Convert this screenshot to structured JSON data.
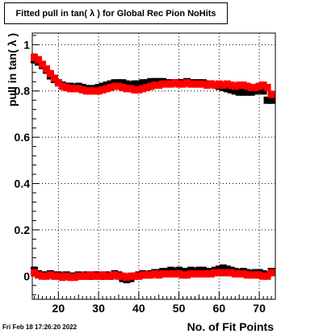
{
  "timestamp": "Fri Feb 18 17:26:20 2022",
  "colors": {
    "series_black": "#000000",
    "series_red": "#ff0000",
    "grid": "#000000"
  },
  "chart_data": {
    "type": "scatter",
    "title": "Fitted pull in tan( λ ) for Global Rec Pion NoHits",
    "xlabel": "No. of Fit Points",
    "ylabel": "pull in tan( λ )",
    "xlim": [
      13.5,
      74
    ],
    "ylim": [
      -0.1,
      1.05
    ],
    "xticks": [
      20,
      30,
      40,
      50,
      60,
      70
    ],
    "yticks": [
      0,
      0.2,
      0.4,
      0.6,
      0.8,
      1
    ],
    "ytick_labels": [
      "0",
      "0.2",
      "0.4",
      "0.6",
      "0.8",
      "1"
    ],
    "grid": true,
    "marker": "square",
    "x": [
      14,
      15,
      16,
      17,
      18,
      19,
      20,
      21,
      22,
      23,
      24,
      25,
      26,
      27,
      28,
      29,
      30,
      31,
      32,
      33,
      34,
      35,
      36,
      37,
      38,
      39,
      40,
      41,
      42,
      43,
      44,
      45,
      46,
      47,
      48,
      49,
      50,
      51,
      52,
      53,
      54,
      55,
      56,
      57,
      58,
      59,
      60,
      61,
      62,
      63,
      64,
      65,
      66,
      67,
      68,
      69,
      70,
      71,
      72,
      73
    ],
    "series": [
      {
        "color": "#000000",
        "groups": [
          {
            "values": [
              0.935,
              0.925,
              0.91,
              0.89,
              0.865,
              0.85,
              0.835,
              0.825,
              0.82,
              0.82,
              0.815,
              0.82,
              0.815,
              0.81,
              0.81,
              0.81,
              0.815,
              0.82,
              0.825,
              0.83,
              0.835,
              0.835,
              0.835,
              0.83,
              0.825,
              0.83,
              0.83,
              0.835,
              0.835,
              0.84,
              0.84,
              0.84,
              0.84,
              0.835,
              0.835,
              0.835,
              0.835,
              0.835,
              0.84,
              0.835,
              0.835,
              0.835,
              0.835,
              0.83,
              0.83,
              0.825,
              0.82,
              0.815,
              0.81,
              0.805,
              0.8,
              0.795,
              0.795,
              0.795,
              0.795,
              0.8,
              0.805,
              0.8,
              0.76,
              0.76
            ]
          },
          {
            "values": [
              0.025,
              0.01,
              0.005,
              0.005,
              0.01,
              0.005,
              0.005,
              0.0,
              0.005,
              0.0,
              0.0,
              0.005,
              0.0,
              0.005,
              0.0,
              0.005,
              0.005,
              0.0,
              0.005,
              0.0,
              0.01,
              0.005,
              -0.01,
              -0.015,
              -0.01,
              0.0,
              0.005,
              0.01,
              0.005,
              0.01,
              0.015,
              0.015,
              0.02,
              0.02,
              0.025,
              0.02,
              0.025,
              0.02,
              0.02,
              0.025,
              0.02,
              0.025,
              0.025,
              0.02,
              0.02,
              0.025,
              0.03,
              0.035,
              0.03,
              0.025,
              0.02,
              0.015,
              0.02,
              0.015,
              0.01,
              0.015,
              0.015,
              0.01,
              0.005,
              0.02
            ]
          }
        ]
      },
      {
        "color": "#ff0000",
        "groups": [
          {
            "values": [
              0.945,
              0.935,
              0.915,
              0.895,
              0.875,
              0.855,
              0.835,
              0.82,
              0.815,
              0.81,
              0.81,
              0.81,
              0.805,
              0.8,
              0.8,
              0.8,
              0.8,
              0.805,
              0.81,
              0.815,
              0.82,
              0.82,
              0.815,
              0.81,
              0.81,
              0.805,
              0.805,
              0.81,
              0.815,
              0.82,
              0.825,
              0.825,
              0.83,
              0.83,
              0.83,
              0.835,
              0.83,
              0.83,
              0.835,
              0.83,
              0.83,
              0.83,
              0.83,
              0.825,
              0.83,
              0.825,
              0.83,
              0.825,
              0.83,
              0.825,
              0.82,
              0.825,
              0.825,
              0.82,
              0.815,
              0.815,
              0.82,
              0.825,
              0.815,
              0.785
            ]
          },
          {
            "values": [
              0.015,
              0.005,
              0.0,
              0.0,
              0.005,
              0.0,
              0.0,
              -0.005,
              0.0,
              -0.005,
              -0.005,
              0.0,
              0.0,
              0.0,
              0.005,
              0.0,
              0.0,
              0.005,
              0.0,
              0.0,
              0.005,
              0.0,
              0.0,
              -0.005,
              0.0,
              0.0,
              0.0,
              0.005,
              0.005,
              0.005,
              0.01,
              0.005,
              0.01,
              0.01,
              0.01,
              0.01,
              0.01,
              0.005,
              0.005,
              0.01,
              0.01,
              0.01,
              0.01,
              0.01,
              0.01,
              0.015,
              0.015,
              0.015,
              0.015,
              0.015,
              0.01,
              0.01,
              0.01,
              0.005,
              0.005,
              0.005,
              0.005,
              0.0,
              0.0,
              0.015
            ]
          }
        ]
      }
    ]
  }
}
